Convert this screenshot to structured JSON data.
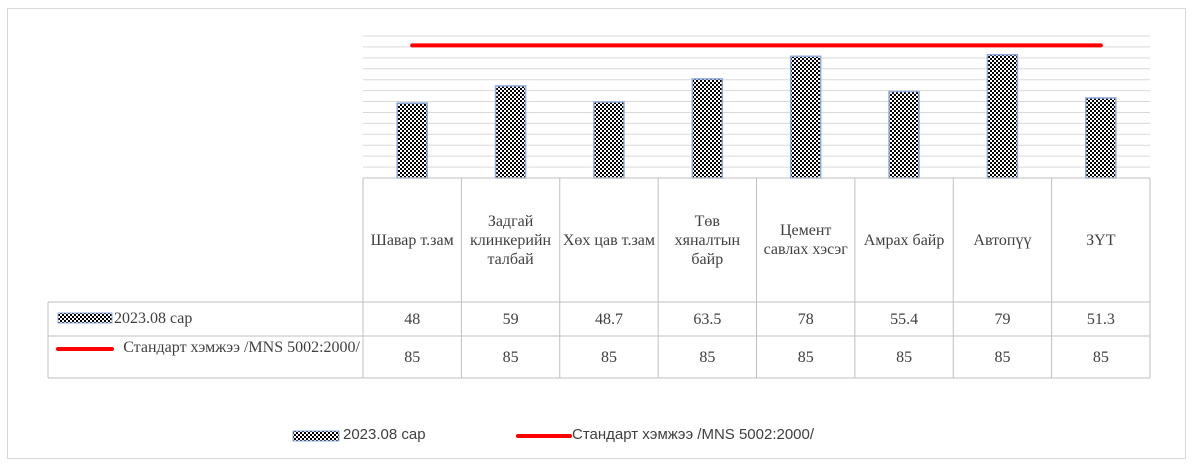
{
  "chart_data": {
    "type": "bar_line_table",
    "categories": [
      "Шавар т.зам",
      "Задгай клинкерийн талбай",
      "Хөх цав т.зам",
      "Төв хяналтын байр",
      "Цемент савлах хэсэг",
      "Амрах байр",
      "Автопүү",
      "ЗҮТ"
    ],
    "series": [
      {
        "name": "2023.08 сар",
        "type": "bar",
        "color": "#000000",
        "values": [
          48,
          59,
          48.7,
          63.5,
          78,
          55.4,
          79,
          51.3
        ]
      },
      {
        "name": "Стандарт хэмжээ /MNS 5002:2000/",
        "type": "line",
        "color": "#ff0000",
        "values": [
          85,
          85,
          85,
          85,
          85,
          85,
          85,
          85
        ]
      }
    ],
    "ylim": [
      0,
      91
    ],
    "yticks": [
      0,
      7,
      14,
      21,
      28,
      35,
      42,
      49,
      56,
      63,
      70,
      77,
      84,
      91
    ],
    "grid": true,
    "legend": "bottom"
  }
}
